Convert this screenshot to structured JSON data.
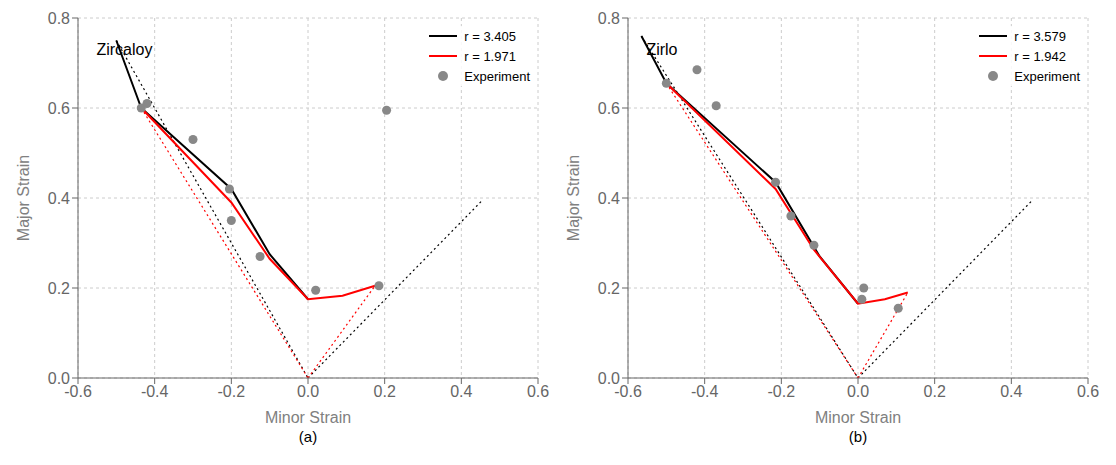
{
  "chart_data": [
    {
      "type": "line",
      "title": "Zircaloy",
      "annotations": [
        "(a)"
      ],
      "xlabel": "Minor Strain",
      "ylabel": "Major Strain",
      "xlim": [
        -0.6,
        0.6
      ],
      "ylim": [
        0.0,
        0.8
      ],
      "xticks": [
        -0.6,
        -0.4,
        -0.2,
        {
          "value": 0.0,
          "label": "0.0"
        },
        0.2,
        0.4,
        0.6
      ],
      "yticks": [
        {
          "value": 0.0,
          "label": "0.0"
        },
        0.2,
        0.4,
        0.6,
        0.8
      ],
      "grid": true,
      "legend": "upper right",
      "series": [
        {
          "type": "line",
          "color": "black",
          "line_style": "dotted",
          "x": [
            -0.5,
            0.0
          ],
          "values": [
            0.75,
            0.0
          ]
        },
        {
          "type": "line",
          "color": "black",
          "line_style": "dotted",
          "x": [
            0.0,
            0.455
          ],
          "values": [
            0.0,
            0.395
          ]
        },
        {
          "type": "line",
          "color": "red",
          "line_style": "dotted",
          "x": [
            -0.435,
            0.0
          ],
          "values": [
            0.6,
            0.0
          ]
        },
        {
          "type": "line",
          "color": "red",
          "line_style": "dotted",
          "x": [
            0.0,
            0.175
          ],
          "values": [
            0.0,
            0.205
          ]
        },
        {
          "name": "r = 3.405",
          "type": "line",
          "color": "black",
          "line_style": "solid",
          "x": [
            -0.5,
            -0.435,
            -0.2,
            -0.1,
            0.0
          ],
          "values": [
            0.75,
            0.6,
            0.42,
            0.275,
            0.175
          ]
        },
        {
          "name": "r = 1.971",
          "type": "line",
          "color": "red",
          "line_style": "solid",
          "x": [
            -0.435,
            -0.2,
            -0.1,
            0.0,
            0.09,
            0.175
          ],
          "values": [
            0.6,
            0.39,
            0.265,
            0.175,
            0.183,
            0.205
          ]
        },
        {
          "name": "Experiment",
          "type": "scatter",
          "color": "#888888",
          "marker": "circle",
          "x": [
            -0.435,
            -0.42,
            -0.3,
            -0.205,
            -0.2,
            -0.125,
            0.02,
            0.185,
            0.205
          ],
          "values": [
            0.6,
            0.61,
            0.53,
            0.42,
            0.35,
            0.27,
            0.195,
            0.205,
            0.595
          ]
        }
      ]
    },
    {
      "type": "line",
      "title": "Zirlo",
      "annotations": [
        "(b)"
      ],
      "xlabel": "Minor Strain",
      "ylabel": "Major Strain",
      "xlim": [
        -0.6,
        0.6
      ],
      "ylim": [
        0.0,
        0.8
      ],
      "xticks": [
        -0.6,
        -0.4,
        -0.2,
        {
          "value": 0.0,
          "label": "0.0"
        },
        0.2,
        0.4,
        0.6
      ],
      "yticks": [
        {
          "value": 0.0,
          "label": "0.0"
        },
        0.2,
        0.4,
        0.6,
        0.8
      ],
      "grid": true,
      "legend": "upper right",
      "series": [
        {
          "type": "line",
          "color": "black",
          "line_style": "dotted",
          "x": [
            -0.565,
            0.0
          ],
          "values": [
            0.76,
            0.0
          ]
        },
        {
          "type": "line",
          "color": "black",
          "line_style": "dotted",
          "x": [
            0.0,
            0.455
          ],
          "values": [
            0.0,
            0.395
          ]
        },
        {
          "type": "line",
          "color": "red",
          "line_style": "dotted",
          "x": [
            -0.5,
            0.0
          ],
          "values": [
            0.655,
            0.0
          ]
        },
        {
          "type": "line",
          "color": "red",
          "line_style": "dotted",
          "x": [
            0.0,
            0.13
          ],
          "values": [
            0.0,
            0.19
          ]
        },
        {
          "name": "r = 3.579",
          "type": "line",
          "color": "black",
          "line_style": "solid",
          "x": [
            -0.565,
            -0.5,
            -0.215,
            -0.1,
            0.0
          ],
          "values": [
            0.76,
            0.655,
            0.435,
            0.27,
            0.165
          ]
        },
        {
          "name": "r = 1.942",
          "type": "line",
          "color": "red",
          "line_style": "solid",
          "x": [
            -0.5,
            -0.215,
            -0.115,
            0.0,
            0.07,
            0.13
          ],
          "values": [
            0.655,
            0.42,
            0.285,
            0.165,
            0.175,
            0.19
          ]
        },
        {
          "name": "Experiment",
          "type": "scatter",
          "color": "#888888",
          "marker": "circle",
          "x": [
            -0.5,
            -0.42,
            -0.37,
            -0.215,
            -0.175,
            -0.115,
            0.01,
            0.015,
            0.105
          ],
          "values": [
            0.655,
            0.685,
            0.605,
            0.435,
            0.36,
            0.295,
            0.175,
            0.2,
            0.155
          ]
        }
      ]
    }
  ]
}
